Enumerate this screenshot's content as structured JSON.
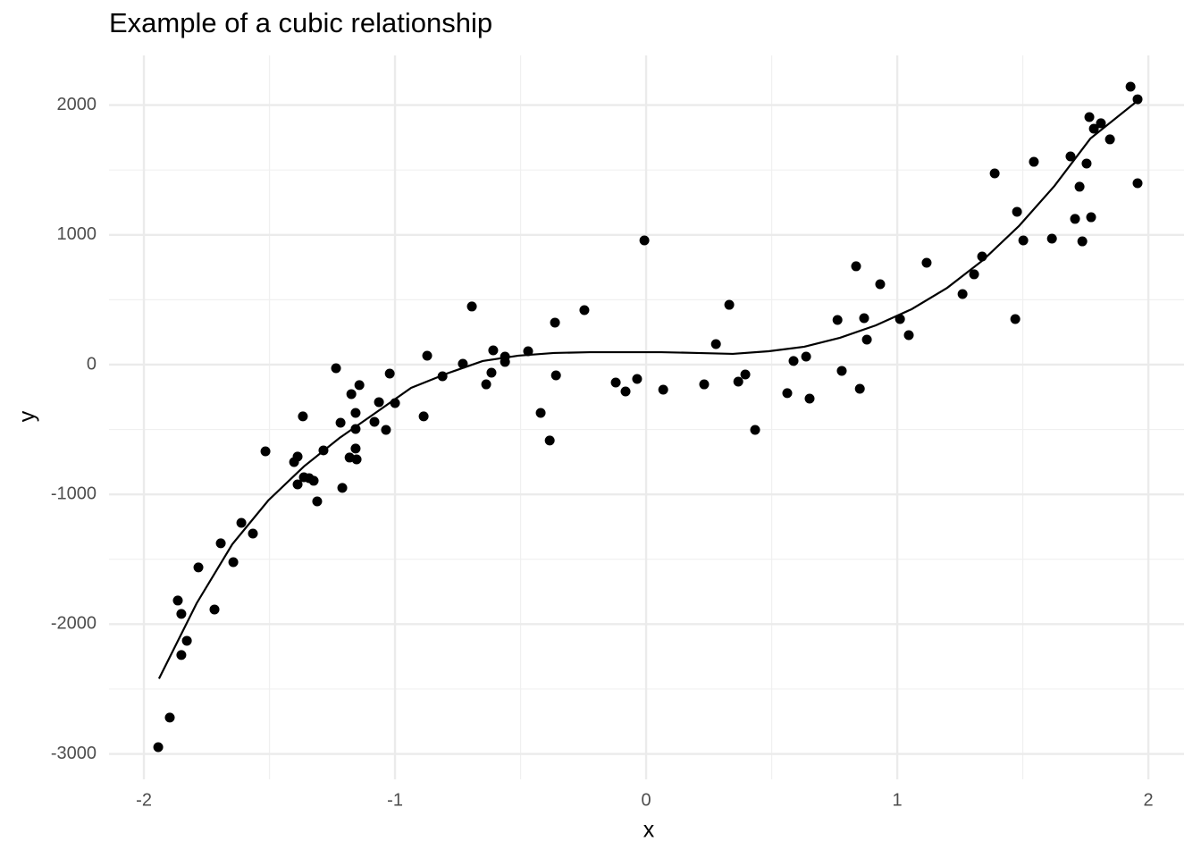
{
  "chart_data": {
    "type": "scatter",
    "title": "Example of a cubic relationship",
    "xlabel": "x",
    "ylabel": "y",
    "xlim": [
      -2.139,
      2.142
    ],
    "ylim": [
      -3196,
      2383
    ],
    "xticks": [
      -2,
      -1,
      0,
      1,
      2
    ],
    "yticks": [
      -3000,
      -2000,
      -1000,
      0,
      1000,
      2000
    ],
    "xminor": [
      -1.5,
      -0.5,
      0.5,
      1.5
    ],
    "yminor": [
      -2500,
      -1500,
      -500,
      500,
      1500
    ],
    "grid": true,
    "point_color": "#000000",
    "line_color": "#000000",
    "points": {
      "x": [
        -1.943,
        -1.897,
        -1.865,
        -1.851,
        -1.851,
        -1.829,
        -1.783,
        -1.719,
        -1.694,
        -1.644,
        -1.612,
        -1.566,
        -1.516,
        -1.402,
        -1.388,
        -1.388,
        -1.367,
        -1.363,
        -1.342,
        -1.324,
        -1.31,
        -1.285,
        -1.235,
        -1.217,
        -1.21,
        -1.181,
        -1.174,
        -1.157,
        -1.157,
        -1.157,
        -1.153,
        -1.142,
        -1.082,
        -1.064,
        -1.036,
        -1.021,
        -1.0,
        -0.886,
        -0.872,
        -0.811,
        -0.73,
        -0.694,
        -0.637,
        -0.616,
        -0.609,
        -0.562,
        -0.562,
        -0.47,
        -0.42,
        -0.384,
        -0.363,
        -0.359,
        -0.246,
        -0.121,
        -0.082,
        -0.036,
        -0.007,
        0.068,
        0.231,
        0.278,
        0.331,
        0.367,
        0.395,
        0.434,
        0.562,
        0.587,
        0.637,
        0.651,
        0.762,
        0.779,
        0.836,
        0.851,
        0.868,
        0.879,
        0.932,
        1.011,
        1.046,
        1.117,
        1.26,
        1.306,
        1.338,
        1.388,
        1.47,
        1.477,
        1.502,
        1.544,
        1.616,
        1.69,
        1.708,
        1.726,
        1.737,
        1.754,
        1.765,
        1.772,
        1.783,
        1.811,
        1.847,
        1.929,
        1.957,
        1.957
      ],
      "y": [
        -2948,
        -2720,
        -1818,
        -1921,
        -2238,
        -2128,
        -1563,
        -1887,
        -1377,
        -1522,
        -1219,
        -1302,
        -668,
        -751,
        -709,
        -923,
        -399,
        -868,
        -875,
        -895,
        -1054,
        -661,
        -28,
        -448,
        -950,
        -716,
        -227,
        -372,
        -496,
        -647,
        -730,
        -158,
        -441,
        -289,
        -503,
        -69,
        -296,
        -399,
        69,
        -90,
        7,
        448,
        -152,
        -62,
        110,
        62,
        21,
        103,
        -372,
        -585,
        324,
        -83,
        420,
        -138,
        -207,
        -110,
        957,
        -193,
        -152,
        158,
        461,
        -131,
        -76,
        -503,
        -220,
        28,
        62,
        -262,
        344,
        -48,
        758,
        -186,
        358,
        193,
        620,
        351,
        227,
        785,
        544,
        696,
        833,
        1474,
        351,
        1178,
        957,
        1563,
        971,
        1605,
        1123,
        1371,
        950,
        1550,
        1908,
        1136,
        1818,
        1860,
        1736,
        2142,
        2045,
        1398
      ]
    },
    "fit": {
      "x": [
        -1.94,
        -1.79,
        -1.648,
        -1.505,
        -1.363,
        -1.221,
        -1.078,
        -0.936,
        -0.794,
        -0.651,
        -0.509,
        -0.367,
        -0.224,
        -0.082,
        0.06,
        0.203,
        0.345,
        0.488,
        0.63,
        0.772,
        0.915,
        1.057,
        1.199,
        1.342,
        1.484,
        1.626,
        1.769,
        1.947
      ],
      "y": [
        -2420,
        -1839,
        -1384,
        -1047,
        -785,
        -565,
        -372,
        -179,
        -69,
        28,
        69,
        90,
        96,
        96,
        96,
        90,
        83,
        103,
        138,
        207,
        303,
        427,
        592,
        806,
        1067,
        1377,
        1742,
        2018
      ]
    }
  }
}
